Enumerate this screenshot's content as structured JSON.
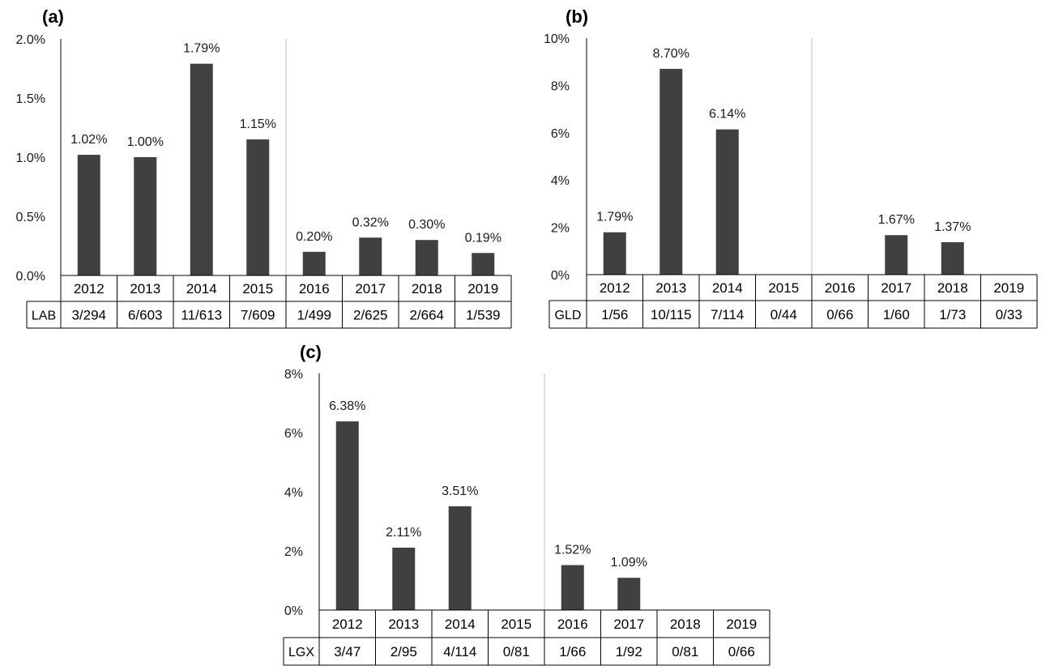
{
  "chart_data": [
    {
      "type": "bar",
      "panel_label": "(a)",
      "table_row_label": "LAB",
      "categories": [
        "2012",
        "2013",
        "2014",
        "2015",
        "2016",
        "2017",
        "2018",
        "2019"
      ],
      "values": [
        1.02,
        1.0,
        1.79,
        1.15,
        0.2,
        0.32,
        0.3,
        0.19
      ],
      "data_labels": [
        "1.02%",
        "1.00%",
        "1.79%",
        "1.15%",
        "0.20%",
        "0.32%",
        "0.30%",
        "0.19%"
      ],
      "ratios": [
        "3/294",
        "6/603",
        "11/613",
        "7/609",
        "1/499",
        "2/625",
        "2/664",
        "1/539"
      ],
      "ylim": [
        0,
        2.0
      ],
      "yticks": [
        0,
        0.5,
        1.0,
        1.5,
        2.0
      ],
      "ytick_labels": [
        "0.0%",
        "0.5%",
        "1.0%",
        "1.5%",
        "2.0%"
      ],
      "divider_after_category": "2015"
    },
    {
      "type": "bar",
      "panel_label": "(b)",
      "table_row_label": "GLD",
      "categories": [
        "2012",
        "2013",
        "2014",
        "2015",
        "2016",
        "2017",
        "2018",
        "2019"
      ],
      "values": [
        1.79,
        8.7,
        6.14,
        0,
        0,
        1.67,
        1.37,
        0
      ],
      "data_labels": [
        "1.79%",
        "8.70%",
        "6.14%",
        "",
        "",
        "1.67%",
        "1.37%",
        ""
      ],
      "ratios": [
        "1/56",
        "10/115",
        "7/114",
        "0/44",
        "0/66",
        "1/60",
        "1/73",
        "0/33"
      ],
      "ylim": [
        0,
        10
      ],
      "yticks": [
        0,
        2,
        4,
        6,
        8,
        10
      ],
      "ytick_labels": [
        "0%",
        "2%",
        "4%",
        "6%",
        "8%",
        "10%"
      ],
      "divider_after_category": "2015"
    },
    {
      "type": "bar",
      "panel_label": "(c)",
      "table_row_label": "LGX",
      "categories": [
        "2012",
        "2013",
        "2014",
        "2015",
        "2016",
        "2017",
        "2018",
        "2019"
      ],
      "values": [
        6.38,
        2.11,
        3.51,
        0,
        1.52,
        1.09,
        0,
        0
      ],
      "data_labels": [
        "6.38%",
        "2.11%",
        "3.51%",
        "",
        "1.52%",
        "1.09%",
        "",
        ""
      ],
      "ratios": [
        "3/47",
        "2/95",
        "4/114",
        "0/81",
        "1/66",
        "1/92",
        "0/81",
        "0/66"
      ],
      "ylim": [
        0,
        8
      ],
      "yticks": [
        0,
        2,
        4,
        6,
        8
      ],
      "ytick_labels": [
        "0%",
        "2%",
        "4%",
        "6%",
        "8%"
      ],
      "divider_after_category": "2015"
    }
  ]
}
